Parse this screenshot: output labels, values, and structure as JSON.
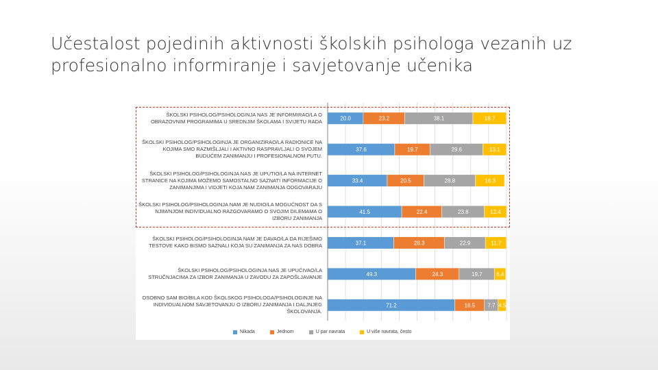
{
  "slide": {
    "title": "Učestalost pojedinih aktivnosti školskih psihologa vezanih uz profesionalno informiranje i savjetovanje učenika"
  },
  "chart_data": {
    "type": "bar",
    "orientation": "horizontal",
    "stacked": true,
    "title": "",
    "xlabel": "",
    "ylabel": "",
    "xlim": [
      0,
      100
    ],
    "grid": true,
    "legend_position": "bottom",
    "categories": [
      "ŠKOLSKI PSIHOLOG/PSIHOLOGINJA NAS JE INFORMIRAO/LA O OBRAZOVNIM PROGRAMIMA U SREDNJIM ŠKOLAMA I SVIJETU RADA",
      "ŠKOLSKI PSIHOLOG/PSIHOLOGINJA JE ORGANIZIRAO/LA RADIONICE NA KOJIMA SMO RAZMIŠLJALI I AKTIVNO RASPRAVLJALI O SVOJEM BUDUĆEM ZANIMANJU I PROFESIONALNOM PUTU.",
      "ŠKOLSKI PSIHOLOG/PSIHOLOGINJA NAS JE UPUTIO/LA NA INTERNET STRANICE NA KOJIMA MOŽEMO SAMOSTALNO SAZNATI INFORMACIJE O ZANIMANJIMA I VIDJETI KOJA NAM ZANIMANJA ODGOVARAJU",
      "ŠKOLSKI PSIHOLOG/PSIHOLOGINJA NAM JE NUDIO/LA MOGUĆNOST DA S NJIM/NJOM INDIVIDUALNO RAZGOVARAMO O SVOJIM DILEMAMA O IZBORU ZANIMANJA",
      "ŠKOLSKI PSIHOLOG/PSIHOLOGINJA NAM JE DAVAO/LA DA RIJEŠIMO TESTOVE KAKO BISMO SAZNALI KOJA SU ZANIMANJA ZA NAS DOBRA",
      "ŠKOLSKI PSIHOLOG/PSIHOLOGINJA NAS JE UPUĆIVAO/LA STRUČNJACIMA ZA IZBOR ZANIMANJA U ZAVODU ZA ZAPOŠLJAVANJE",
      "OSOBNO SAM BIO/BILA KOD ŠKOLSKOG PSIHOLOGA/PSIHOLOGINJE NA INDIVIDUALNOM SAVJETOVANJU O IZBORU ZANIMANJA I DALJNJEG ŠKOLOVANJA."
    ],
    "series": [
      {
        "name": "Nikada",
        "color": "#5b9bd5",
        "values": [
          20.0,
          37.6,
          33.4,
          41.5,
          37.1,
          49.3,
          71.2
        ]
      },
      {
        "name": "Jednom",
        "color": "#ed7d31",
        "values": [
          23.2,
          19.7,
          20.5,
          22.4,
          28.3,
          24.3,
          16.5
        ]
      },
      {
        "name": "U par navrata",
        "color": "#a5a5a5",
        "values": [
          38.1,
          29.6,
          28.8,
          23.8,
          22.9,
          19.7,
          7.7
        ]
      },
      {
        "name": "U više navrata, često",
        "color": "#ffc000",
        "values": [
          18.7,
          13.1,
          16.3,
          12.4,
          11.7,
          6.4,
          4.5
        ]
      }
    ]
  }
}
